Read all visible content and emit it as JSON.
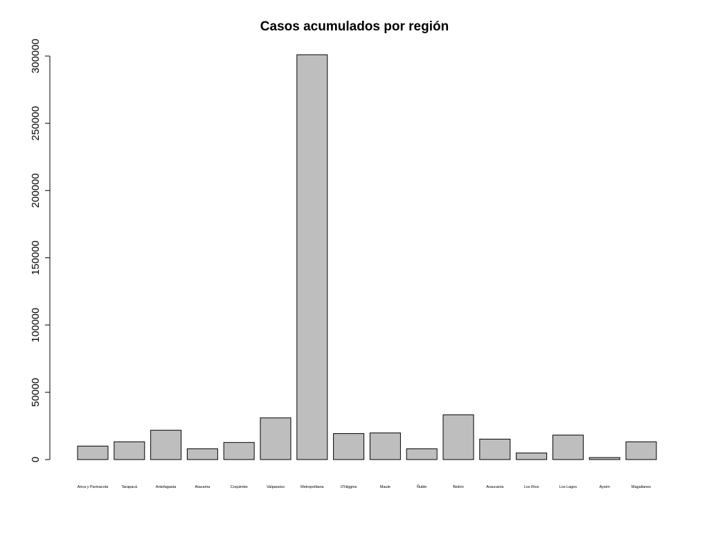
{
  "chart_data": {
    "type": "bar",
    "title": "Casos acumulados por región",
    "xlabel": "",
    "ylabel": "",
    "ylim": [
      0,
      300000
    ],
    "yticks": [
      0,
      50000,
      100000,
      150000,
      200000,
      250000,
      300000
    ],
    "grid": false,
    "colors": {
      "bar_fill": "#bebebe",
      "bar_stroke": "#000000",
      "axis": "#000000"
    },
    "categories": [
      "Arica y Parinacota",
      "Tarapacá",
      "Antofagasta",
      "Atacama",
      "Coquimbo",
      "Valparaíso",
      "Metropolitana",
      "O'Higgins",
      "Maule",
      "Ñuble",
      "Biobío",
      "Araucanía",
      "Los Ríos",
      "Los Lagos",
      "Aysén",
      "Magallanes"
    ],
    "values": [
      10000,
      13200,
      21800,
      8000,
      12700,
      31000,
      301000,
      19300,
      19800,
      8000,
      33300,
      15200,
      4900,
      18200,
      1500,
      13200
    ]
  }
}
